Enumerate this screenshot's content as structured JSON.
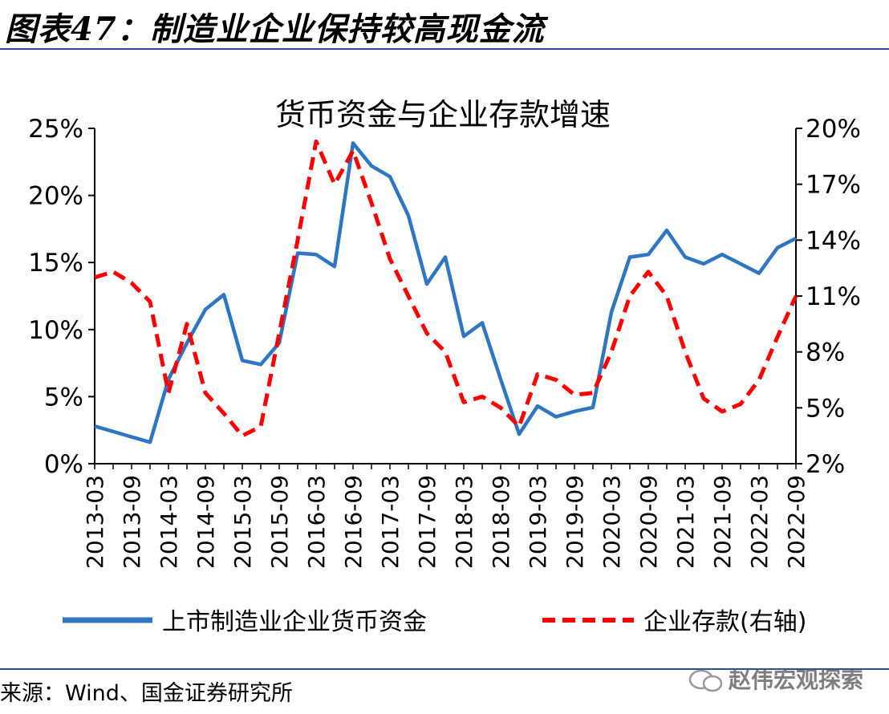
{
  "figure_title": "图表47：制造业企业保持较高现金流",
  "source": "来源：Wind、国金证券研究所",
  "watermark": "赵伟宏观探索",
  "watermark_icon": "wechat-icon",
  "colors": {
    "rule": "#2c4f8f",
    "series_blue": "#2e75c2",
    "series_red": "#ff0000"
  },
  "chart_data": {
    "type": "line",
    "title": "货币资金与企业存款增速",
    "x": [
      "2013-03",
      "2013-06",
      "2013-09",
      "2013-12",
      "2014-03",
      "2014-06",
      "2014-09",
      "2014-12",
      "2015-03",
      "2015-06",
      "2015-09",
      "2015-12",
      "2016-03",
      "2016-06",
      "2016-09",
      "2016-12",
      "2017-03",
      "2017-06",
      "2017-09",
      "2017-12",
      "2018-03",
      "2018-06",
      "2018-09",
      "2018-12",
      "2019-03",
      "2019-06",
      "2019-09",
      "2019-12",
      "2020-03",
      "2020-06",
      "2020-09",
      "2020-12",
      "2021-03",
      "2021-06",
      "2021-09",
      "2021-12",
      "2022-03",
      "2022-06",
      "2022-09"
    ],
    "x_tick_labels": [
      "2013-03",
      "2013-09",
      "2014-03",
      "2014-09",
      "2015-03",
      "2015-09",
      "2016-03",
      "2016-09",
      "2017-03",
      "2017-09",
      "2018-03",
      "2018-09",
      "2019-03",
      "2019-09",
      "2020-03",
      "2020-09",
      "2021-03",
      "2021-09",
      "2022-03",
      "2022-09"
    ],
    "left_axis": {
      "ylim": [
        0,
        25
      ],
      "ticks": [
        0,
        5,
        10,
        15,
        20,
        25
      ],
      "tick_labels": [
        "0%",
        "5%",
        "10%",
        "15%",
        "20%",
        "25%"
      ]
    },
    "right_axis": {
      "ylim": [
        2,
        20
      ],
      "ticks": [
        2,
        5,
        8,
        11,
        14,
        17,
        20
      ],
      "tick_labels": [
        "2%",
        "5%",
        "8%",
        "11%",
        "14%",
        "17%",
        "20%"
      ]
    },
    "series": [
      {
        "name": "上市制造业企业货币资金",
        "axis": "left",
        "style": "solid",
        "color": "#2e75c2",
        "values": [
          2.8,
          2.4,
          2.0,
          1.6,
          6.3,
          9.0,
          11.5,
          12.6,
          7.7,
          7.4,
          9.0,
          15.7,
          15.6,
          14.7,
          23.9,
          22.2,
          21.4,
          18.5,
          13.4,
          15.4,
          9.5,
          10.5,
          6.3,
          2.2,
          4.3,
          3.5,
          3.9,
          4.2,
          11.3,
          15.4,
          15.6,
          17.4,
          15.4,
          14.9,
          15.6,
          14.9,
          14.2,
          16.1,
          16.8
        ]
      },
      {
        "name": "企业存款(右轴)",
        "axis": "right",
        "style": "dashed",
        "color": "#ff0000",
        "values": [
          12.0,
          12.3,
          11.7,
          10.7,
          5.8,
          9.5,
          5.8,
          4.7,
          3.5,
          4.0,
          9.0,
          14.0,
          19.3,
          17.0,
          18.8,
          16.0,
          13.0,
          11.0,
          9.0,
          8.0,
          5.3,
          5.6,
          5.0,
          4.0,
          6.8,
          6.5,
          5.7,
          5.8,
          8.0,
          11.0,
          12.3,
          11.0,
          8.0,
          5.5,
          4.8,
          5.2,
          6.5,
          8.8,
          11.0
        ]
      }
    ],
    "legend": {
      "placement": "bottom"
    },
    "grid": false
  }
}
